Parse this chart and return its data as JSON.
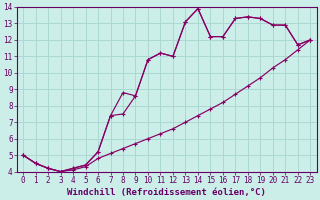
{
  "xlabel": "Windchill (Refroidissement éolien,°C)",
  "background_color": "#cceee8",
  "grid_color": "#aad8d2",
  "line_color": "#880066",
  "xlim": [
    -0.5,
    23.5
  ],
  "ylim": [
    4,
    14
  ],
  "xticks": [
    0,
    1,
    2,
    3,
    4,
    5,
    6,
    7,
    8,
    9,
    10,
    11,
    12,
    13,
    14,
    15,
    16,
    17,
    18,
    19,
    20,
    21,
    22,
    23
  ],
  "yticks": [
    4,
    5,
    6,
    7,
    8,
    9,
    10,
    11,
    12,
    13,
    14
  ],
  "series1_x": [
    0,
    1,
    2,
    3,
    4,
    5,
    6,
    7,
    8,
    9,
    10,
    11,
    12,
    13,
    14,
    15,
    16,
    17,
    18,
    19,
    20,
    21,
    22,
    23
  ],
  "series1_y": [
    5.0,
    4.5,
    4.2,
    4.0,
    4.1,
    4.3,
    4.8,
    5.1,
    5.4,
    5.7,
    6.0,
    6.3,
    6.6,
    7.0,
    7.4,
    7.8,
    8.2,
    8.7,
    9.2,
    9.7,
    10.3,
    10.8,
    11.4,
    12.0
  ],
  "series2_x": [
    0,
    1,
    2,
    3,
    4,
    5,
    6,
    7,
    8,
    9,
    10,
    11,
    12,
    13,
    14,
    15,
    16,
    17,
    18,
    19,
    20,
    21,
    22,
    23
  ],
  "series2_y": [
    5.0,
    4.5,
    4.2,
    4.0,
    4.2,
    4.4,
    5.2,
    7.4,
    8.8,
    8.6,
    10.8,
    11.2,
    11.0,
    13.1,
    13.9,
    12.2,
    12.2,
    13.3,
    13.4,
    13.3,
    12.9,
    12.9,
    11.7,
    12.0
  ],
  "series3_x": [
    0,
    1,
    2,
    3,
    4,
    5,
    6,
    7,
    8,
    9,
    10,
    11,
    12,
    13,
    14,
    15,
    16,
    17,
    18,
    19,
    20,
    21,
    22,
    23
  ],
  "series3_y": [
    5.0,
    4.5,
    4.2,
    4.0,
    4.2,
    4.4,
    5.2,
    7.4,
    7.5,
    8.6,
    10.8,
    11.2,
    11.0,
    13.1,
    13.9,
    12.2,
    12.2,
    13.3,
    13.4,
    13.3,
    12.9,
    12.9,
    11.7,
    12.0
  ],
  "font_color": "#660066",
  "tick_fontsize": 5.5,
  "label_fontsize": 6.5
}
